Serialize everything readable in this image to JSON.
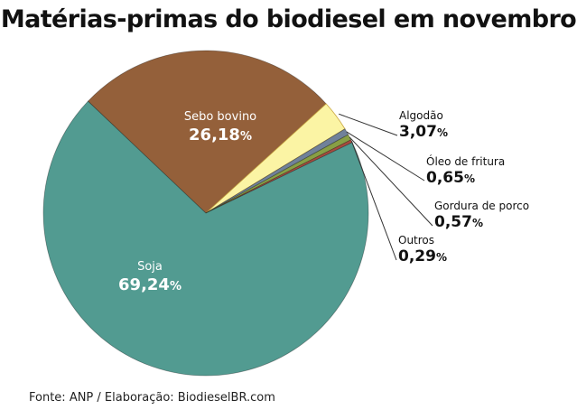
{
  "header": {
    "title": "Matérias-primas do biodiesel em novembro"
  },
  "footer": {
    "source": "Fonte: ANP / Elaboração: BiodieselBR.com"
  },
  "chart_data": {
    "type": "pie",
    "title": "Matérias-primas do biodiesel em novembro",
    "slices": [
      {
        "label": "Sebo bovino",
        "value": 26.18,
        "value_text": "26,18",
        "color": "#94603a",
        "label_style": "inside"
      },
      {
        "label": "Algodão",
        "value": 3.07,
        "value_text": "3,07",
        "color": "#fbf4a4",
        "label_style": "outside"
      },
      {
        "label": "Óleo de fritura",
        "value": 0.65,
        "value_text": "0,65",
        "color": "#70819a",
        "label_style": "outside"
      },
      {
        "label": "Gordura de porco",
        "value": 0.57,
        "value_text": "0,57",
        "color": "#889f45",
        "label_style": "outside"
      },
      {
        "label": "Outros",
        "value": 0.29,
        "value_text": "0,29",
        "color": "#a64b3e",
        "label_style": "outside"
      },
      {
        "label": "Soja",
        "value": 69.24,
        "value_text": "69,24",
        "color": "#529b91",
        "label_style": "inside"
      }
    ],
    "unit": "%",
    "legend": "none"
  }
}
